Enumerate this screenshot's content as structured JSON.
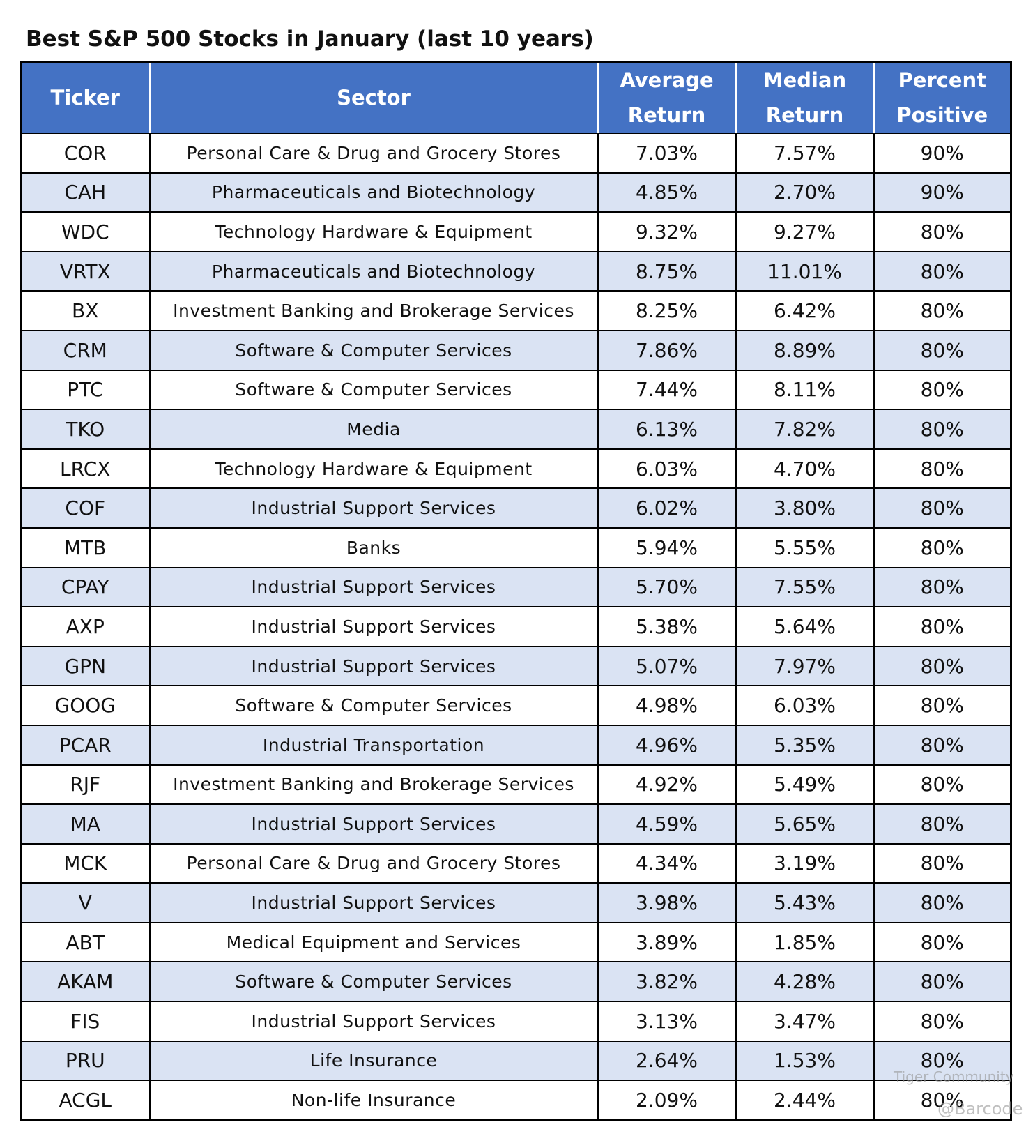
{
  "title": "Best S&P 500 Stocks in January (last 10 years)",
  "table": {
    "header": [
      "Ticker",
      "Sector",
      "Average Return",
      "Median Return",
      "Percent Positive"
    ],
    "rows": [
      [
        "COR",
        "Personal Care & Drug and Grocery Stores",
        "7.03%",
        "7.57%",
        "90%"
      ],
      [
        "CAH",
        "Pharmaceuticals and Biotechnology",
        "4.85%",
        "2.70%",
        "90%"
      ],
      [
        "WDC",
        "Technology Hardware & Equipment",
        "9.32%",
        "9.27%",
        "80%"
      ],
      [
        "VRTX",
        "Pharmaceuticals and Biotechnology",
        "8.75%",
        "11.01%",
        "80%"
      ],
      [
        "BX",
        "Investment Banking and Brokerage Services",
        "8.25%",
        "6.42%",
        "80%"
      ],
      [
        "CRM",
        "Software & Computer Services",
        "7.86%",
        "8.89%",
        "80%"
      ],
      [
        "PTC",
        "Software & Computer Services",
        "7.44%",
        "8.11%",
        "80%"
      ],
      [
        "TKO",
        "Media",
        "6.13%",
        "7.82%",
        "80%"
      ],
      [
        "LRCX",
        "Technology Hardware & Equipment",
        "6.03%",
        "4.70%",
        "80%"
      ],
      [
        "COF",
        "Industrial Support Services",
        "6.02%",
        "3.80%",
        "80%"
      ],
      [
        "MTB",
        "Banks",
        "5.94%",
        "5.55%",
        "80%"
      ],
      [
        "CPAY",
        "Industrial Support Services",
        "5.70%",
        "7.55%",
        "80%"
      ],
      [
        "AXP",
        "Industrial Support Services",
        "5.38%",
        "5.64%",
        "80%"
      ],
      [
        "GPN",
        "Industrial Support Services",
        "5.07%",
        "7.97%",
        "80%"
      ],
      [
        "GOOG",
        "Software & Computer Services",
        "4.98%",
        "6.03%",
        "80%"
      ],
      [
        "PCAR",
        "Industrial Transportation",
        "4.96%",
        "5.35%",
        "80%"
      ],
      [
        "RJF",
        "Investment Banking and Brokerage Services",
        "4.92%",
        "5.49%",
        "80%"
      ],
      [
        "MA",
        "Industrial Support Services",
        "4.59%",
        "5.65%",
        "80%"
      ],
      [
        "MCK",
        "Personal Care & Drug and Grocery Stores",
        "4.34%",
        "3.19%",
        "80%"
      ],
      [
        "V",
        "Industrial Support Services",
        "3.98%",
        "5.43%",
        "80%"
      ],
      [
        "ABT",
        "Medical Equipment and Services",
        "3.89%",
        "1.85%",
        "80%"
      ],
      [
        "AKAM",
        "Software & Computer Services",
        "3.82%",
        "4.28%",
        "80%"
      ],
      [
        "FIS",
        "Industrial Support Services",
        "3.13%",
        "3.47%",
        "80%"
      ],
      [
        "PRU",
        "Life Insurance",
        "2.64%",
        "1.53%",
        "80%"
      ],
      [
        "ACGL",
        "Non-life Insurance",
        "2.09%",
        "2.44%",
        "80%"
      ]
    ]
  },
  "watermark": [
    "Tiger Community",
    "@Barcode"
  ]
}
